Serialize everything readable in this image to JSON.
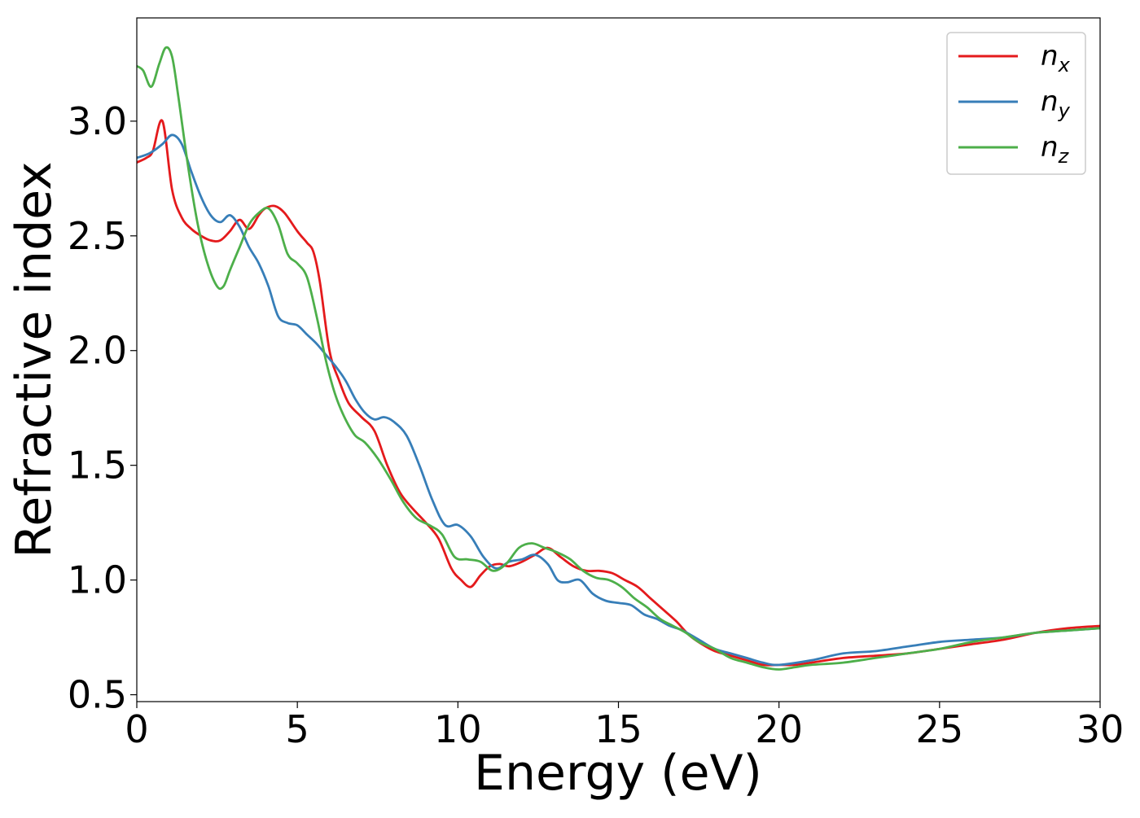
{
  "chart_data": {
    "type": "line",
    "xlabel": "Energy (eV)",
    "ylabel": "Refractive index",
    "xlim": [
      0,
      30
    ],
    "ylim": [
      0.47,
      3.45
    ],
    "xticks": [
      0,
      5,
      10,
      15,
      20,
      25,
      30
    ],
    "xtick_labels": [
      "0",
      "5",
      "10",
      "15",
      "20",
      "25",
      "30"
    ],
    "yticks": [
      0.5,
      1.0,
      1.5,
      2.0,
      2.5,
      3.0
    ],
    "ytick_labels": [
      "0.5",
      "1.0",
      "1.5",
      "2.0",
      "2.5",
      "3.0"
    ],
    "grid": false,
    "legend_position": "top-right",
    "series": [
      {
        "name": "n",
        "subscript": "x",
        "color": "#e41a1c",
        "x": [
          0,
          0.3,
          0.5,
          0.8,
          1.1,
          1.4,
          1.7,
          2.0,
          2.3,
          2.6,
          2.9,
          3.2,
          3.5,
          3.8,
          4.0,
          4.3,
          4.6,
          5.0,
          5.3,
          5.5,
          5.7,
          6.0,
          6.3,
          6.6,
          7.0,
          7.4,
          7.8,
          8.2,
          8.6,
          9.0,
          9.4,
          9.8,
          10.1,
          10.4,
          10.7,
          11.0,
          11.3,
          11.6,
          12.0,
          12.4,
          12.8,
          13.2,
          13.6,
          14.0,
          14.4,
          14.8,
          15.2,
          15.6,
          16.0,
          16.4,
          16.8,
          17.2,
          17.6,
          18.0,
          18.5,
          19.0,
          19.5,
          20.0,
          20.5,
          21.0,
          22.0,
          23.0,
          24.0,
          25.0,
          26.0,
          27.0,
          28.0,
          29.0,
          30.0
        ],
        "y": [
          2.82,
          2.84,
          2.87,
          3.0,
          2.7,
          2.58,
          2.53,
          2.5,
          2.48,
          2.48,
          2.52,
          2.57,
          2.53,
          2.59,
          2.62,
          2.63,
          2.6,
          2.52,
          2.47,
          2.43,
          2.3,
          2.0,
          1.87,
          1.77,
          1.71,
          1.65,
          1.5,
          1.38,
          1.31,
          1.25,
          1.18,
          1.05,
          1.0,
          0.97,
          1.02,
          1.06,
          1.07,
          1.06,
          1.08,
          1.11,
          1.14,
          1.1,
          1.06,
          1.04,
          1.04,
          1.03,
          1.0,
          0.97,
          0.92,
          0.87,
          0.82,
          0.76,
          0.72,
          0.69,
          0.67,
          0.65,
          0.63,
          0.63,
          0.63,
          0.64,
          0.66,
          0.67,
          0.68,
          0.7,
          0.72,
          0.74,
          0.77,
          0.79,
          0.8
        ]
      },
      {
        "name": "n",
        "subscript": "y",
        "color": "#377eb8",
        "x": [
          0,
          0.4,
          0.8,
          1.1,
          1.4,
          1.7,
          2.0,
          2.3,
          2.6,
          2.9,
          3.2,
          3.5,
          3.8,
          4.1,
          4.4,
          4.7,
          5.0,
          5.3,
          5.6,
          5.9,
          6.2,
          6.5,
          6.8,
          7.1,
          7.4,
          7.7,
          8.0,
          8.4,
          8.8,
          9.2,
          9.6,
          10.0,
          10.4,
          10.8,
          11.2,
          11.6,
          12.0,
          12.4,
          12.8,
          13.1,
          13.4,
          13.8,
          14.2,
          14.6,
          15.0,
          15.4,
          15.8,
          16.2,
          16.6,
          17.0,
          17.5,
          18.0,
          18.5,
          19.0,
          19.5,
          20.0,
          21.0,
          22.0,
          23.0,
          24.0,
          25.0,
          26.0,
          27.0,
          28.0,
          29.0,
          30.0
        ],
        "y": [
          2.84,
          2.86,
          2.9,
          2.94,
          2.9,
          2.78,
          2.67,
          2.59,
          2.56,
          2.59,
          2.54,
          2.45,
          2.38,
          2.28,
          2.15,
          2.12,
          2.11,
          2.07,
          2.03,
          1.98,
          1.93,
          1.87,
          1.79,
          1.73,
          1.7,
          1.71,
          1.69,
          1.63,
          1.5,
          1.35,
          1.24,
          1.24,
          1.19,
          1.1,
          1.05,
          1.08,
          1.09,
          1.11,
          1.07,
          1.0,
          0.99,
          1.0,
          0.94,
          0.91,
          0.9,
          0.89,
          0.85,
          0.83,
          0.8,
          0.78,
          0.74,
          0.7,
          0.68,
          0.66,
          0.64,
          0.63,
          0.65,
          0.68,
          0.69,
          0.71,
          0.73,
          0.74,
          0.75,
          0.77,
          0.78,
          0.79
        ]
      },
      {
        "name": "n",
        "subscript": "z",
        "color": "#4daf4a",
        "x": [
          0,
          0.2,
          0.45,
          0.7,
          0.9,
          1.1,
          1.3,
          1.6,
          1.9,
          2.2,
          2.5,
          2.7,
          2.9,
          3.2,
          3.5,
          3.8,
          4.1,
          4.4,
          4.7,
          5.0,
          5.3,
          5.6,
          5.9,
          6.2,
          6.5,
          6.8,
          7.1,
          7.5,
          7.9,
          8.3,
          8.7,
          9.1,
          9.5,
          9.9,
          10.3,
          10.7,
          11.1,
          11.5,
          11.9,
          12.3,
          12.7,
          13.1,
          13.5,
          13.9,
          14.3,
          14.7,
          15.1,
          15.5,
          15.9,
          16.3,
          16.7,
          17.1,
          17.5,
          18.0,
          18.5,
          19.0,
          19.5,
          20.0,
          20.5,
          21.0,
          22.0,
          23.0,
          24.0,
          25.0,
          26.0,
          27.0,
          28.0,
          29.0,
          30.0
        ],
        "y": [
          3.24,
          3.22,
          3.15,
          3.25,
          3.32,
          3.28,
          3.1,
          2.8,
          2.55,
          2.38,
          2.28,
          2.28,
          2.35,
          2.45,
          2.55,
          2.6,
          2.62,
          2.55,
          2.42,
          2.38,
          2.32,
          2.15,
          1.95,
          1.8,
          1.7,
          1.63,
          1.6,
          1.53,
          1.44,
          1.34,
          1.27,
          1.24,
          1.2,
          1.1,
          1.09,
          1.08,
          1.04,
          1.07,
          1.14,
          1.16,
          1.14,
          1.12,
          1.09,
          1.04,
          1.01,
          1.0,
          0.97,
          0.92,
          0.88,
          0.83,
          0.8,
          0.77,
          0.73,
          0.7,
          0.66,
          0.64,
          0.62,
          0.61,
          0.62,
          0.63,
          0.64,
          0.66,
          0.68,
          0.7,
          0.73,
          0.75,
          0.77,
          0.78,
          0.79
        ]
      }
    ]
  }
}
